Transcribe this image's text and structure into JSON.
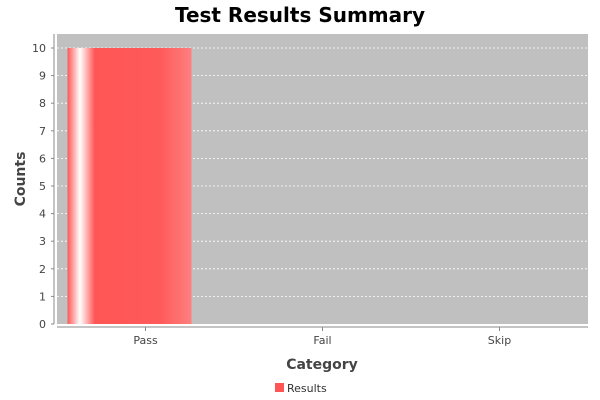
{
  "chart_data": {
    "type": "bar",
    "title": "Test Results Summary",
    "xlabel": "Category",
    "ylabel": "Counts",
    "categories": [
      "Pass",
      "Fail",
      "Skip"
    ],
    "series": [
      {
        "name": "Results",
        "values": [
          10,
          0,
          0
        ],
        "color": "#ff5555"
      }
    ],
    "ylim": [
      0,
      10
    ],
    "yticks": [
      0,
      1,
      2,
      3,
      4,
      5,
      6,
      7,
      8,
      9,
      10
    ],
    "grid": true,
    "legend_position": "bottom",
    "plot_background": "#c0c0c0"
  }
}
